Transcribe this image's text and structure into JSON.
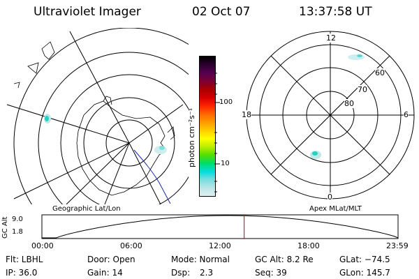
{
  "header": {
    "instrument": "Ultraviolet Imager",
    "date": "02 Oct 07",
    "time": "13:37:58 UT"
  },
  "left_map": {
    "caption": "Geographic Lat/Lon"
  },
  "right_map": {
    "caption": "Apex MLat/MLT",
    "mlt_labels": {
      "top": "12",
      "left": "18",
      "right": "6",
      "bottom": "0"
    },
    "lat_labels": [
      "60",
      "70",
      "80"
    ]
  },
  "colorbar": {
    "unit_label": "photon cm⁻²s⁻¹",
    "tick_100": "100",
    "tick_10": "10",
    "colors": [
      "#000000",
      "#2b0030",
      "#550050",
      "#7a0035",
      "#aa0000",
      "#d40000",
      "#ff2200",
      "#ff6600",
      "#ff9900",
      "#ffcc00",
      "#ffff00",
      "#bbee00",
      "#55dd00",
      "#00dd66",
      "#00dddd",
      "#77dddd",
      "#bbe6e6",
      "#e0f0f0"
    ]
  },
  "timeline": {
    "y_axis_label": "GC Alt",
    "y_ticks": [
      "9.0",
      "1.8"
    ],
    "x_ticks": [
      "00:00",
      "06:00",
      "12:00",
      "18:00",
      "23:59"
    ],
    "marker_time_hours": 13.63
  },
  "status": {
    "col1": {
      "row1": "Flt: LBHL",
      "row2": "IP: 36.0"
    },
    "col2": {
      "row1": "Door: Open",
      "row2": "Gain: 14"
    },
    "col3": {
      "row1": "Mode: Normal",
      "row2_label": "Dsp:",
      "row2_value": "2.3"
    },
    "col4": {
      "row1": "GC Alt: 8.2 Re",
      "row2": "Seq: 39"
    },
    "col5": {
      "row1": "GLat: −74.5",
      "row2": "GLon: 145.7"
    }
  }
}
